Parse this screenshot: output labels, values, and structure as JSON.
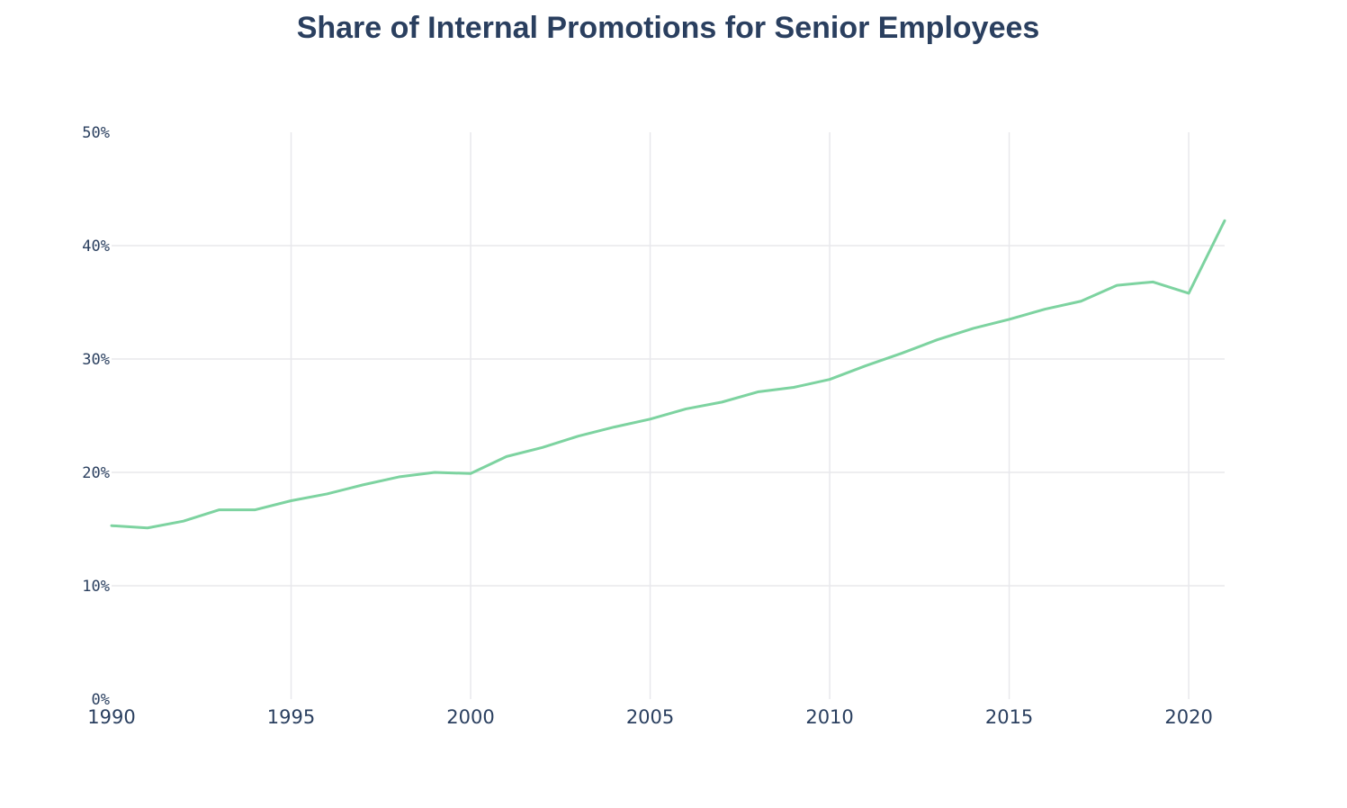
{
  "chart_data": {
    "type": "line",
    "title": "Share of Internal Promotions for Senior Employees",
    "xlabel": "",
    "ylabel": "",
    "xlim": [
      1990,
      2021
    ],
    "ylim": [
      0,
      50
    ],
    "x_ticks": [
      1990,
      1995,
      2000,
      2005,
      2010,
      2015,
      2020
    ],
    "y_ticks": [
      0,
      10,
      20,
      30,
      40,
      50
    ],
    "y_tick_labels": [
      "0%",
      "10%",
      "20%",
      "30%",
      "40%",
      "50%"
    ],
    "grid": true,
    "line_color": "#7dd3a0",
    "series": [
      {
        "x": [
          1990,
          1991,
          1992,
          1993,
          1994,
          1995,
          1996,
          1997,
          1998,
          1999,
          2000,
          2001,
          2002,
          2003,
          2004,
          2005,
          2006,
          2007,
          2008,
          2009,
          2010,
          2011,
          2012,
          2013,
          2014,
          2015,
          2016,
          2017,
          2018,
          2019,
          2020,
          2021
        ],
        "values": [
          15.3,
          15.1,
          15.7,
          16.7,
          16.7,
          17.5,
          18.1,
          18.9,
          19.6,
          20.0,
          19.9,
          21.4,
          22.2,
          23.2,
          24.0,
          24.7,
          25.6,
          26.2,
          27.1,
          27.5,
          28.2,
          29.4,
          30.5,
          31.7,
          32.7,
          33.5,
          34.4,
          35.1,
          36.5,
          36.8,
          35.8,
          42.2
        ]
      }
    ]
  }
}
